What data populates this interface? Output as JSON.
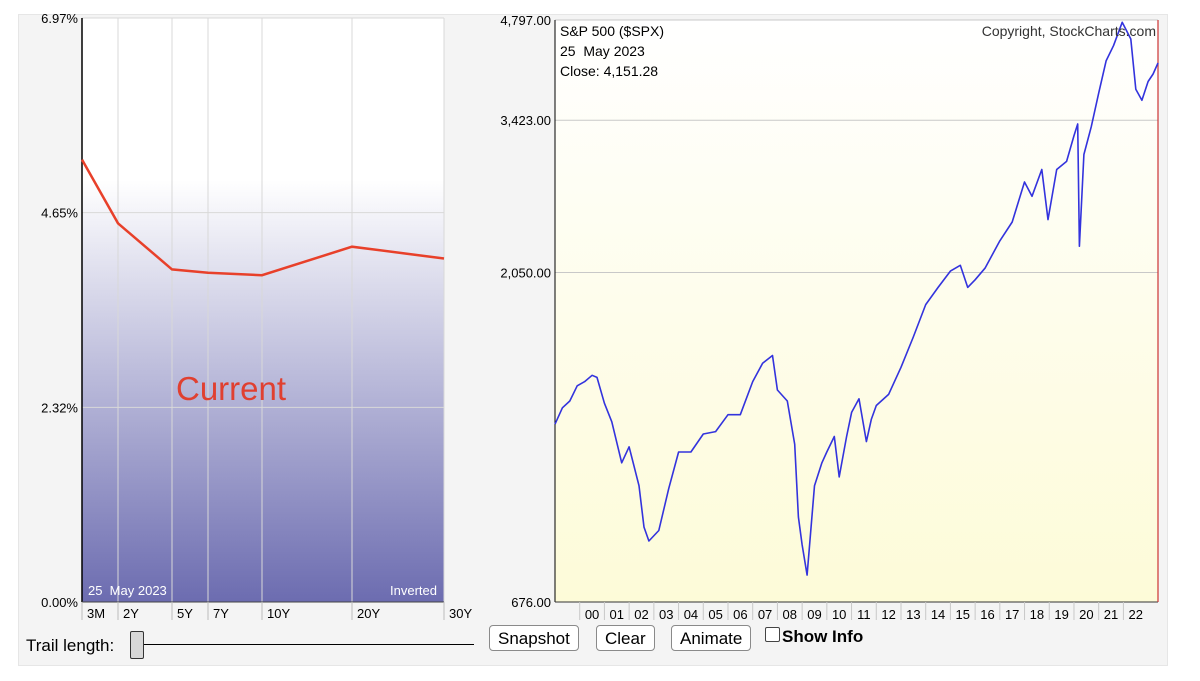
{
  "chart_data": [
    {
      "type": "line",
      "title": "",
      "categories": [
        "3M",
        "2Y",
        "5Y",
        "7Y",
        "10Y",
        "20Y",
        "30Y"
      ],
      "maturity_years": [
        0.25,
        2,
        5,
        7,
        10,
        20,
        30
      ],
      "series": [
        {
          "values": [
            5.28,
            4.52,
            3.97,
            3.93,
            3.9,
            4.24,
            4.1
          ]
        }
      ],
      "ylim": [
        0,
        6.97
      ],
      "yticks": [
        "0.00%",
        "2.32%",
        "4.65%",
        "6.97%"
      ],
      "annotation": "Current",
      "date_label": "25  May 2023",
      "inverted_label": "Inverted",
      "grid": true,
      "colors": {
        "line": "#e8402a",
        "annotation": "#e04030",
        "fill_top": "#ffffff",
        "fill_bottom": "#6c6cb0"
      }
    },
    {
      "type": "line",
      "title": "S&P 500 ($SPX)",
      "date_label": "25  May 2023",
      "close_label": "Close: 4,151.28",
      "copyright": "Copyright, StockCharts.com",
      "scale": "log",
      "ylim": [
        676,
        4797
      ],
      "yticks": [
        "676.00",
        "2,050.00",
        "3,423.00",
        "4,797.00"
      ],
      "ytick_values": [
        676,
        2050,
        3423,
        4797
      ],
      "xlim": [
        1999.0,
        2023.4
      ],
      "xticks": [
        "00",
        "01",
        "02",
        "03",
        "04",
        "05",
        "06",
        "07",
        "08",
        "09",
        "10",
        "11",
        "12",
        "13",
        "14",
        "15",
        "16",
        "17",
        "18",
        "19",
        "20",
        "21",
        "22"
      ],
      "series": [
        {
          "x": [
            1999.0,
            1999.3,
            1999.6,
            1999.9,
            2000.2,
            2000.5,
            2000.7,
            2001.0,
            2001.3,
            2001.7,
            2002.0,
            2002.4,
            2002.6,
            2002.8,
            2003.2,
            2003.6,
            2004.0,
            2004.5,
            2005.0,
            2005.5,
            2006.0,
            2006.5,
            2007.0,
            2007.4,
            2007.8,
            2008.0,
            2008.4,
            2008.7,
            2008.85,
            2009.0,
            2009.2,
            2009.5,
            2009.8,
            2010.0,
            2010.3,
            2010.5,
            2010.8,
            2011.0,
            2011.3,
            2011.6,
            2011.8,
            2012.0,
            2012.5,
            2013.0,
            2013.5,
            2014.0,
            2014.5,
            2015.0,
            2015.4,
            2015.7,
            2016.0,
            2016.4,
            2017.0,
            2017.5,
            2018.0,
            2018.3,
            2018.7,
            2018.95,
            2019.3,
            2019.7,
            2020.0,
            2020.15,
            2020.22,
            2020.4,
            2020.7,
            2021.0,
            2021.3,
            2021.6,
            2021.95,
            2022.3,
            2022.5,
            2022.75,
            2023.0,
            2023.2,
            2023.4
          ],
          "values": [
            1230,
            1300,
            1330,
            1400,
            1420,
            1450,
            1440,
            1320,
            1240,
            1080,
            1140,
            1000,
            870,
            830,
            860,
            990,
            1120,
            1120,
            1190,
            1200,
            1270,
            1270,
            1420,
            1510,
            1550,
            1380,
            1330,
            1150,
            900,
            820,
            740,
            1000,
            1080,
            1120,
            1180,
            1030,
            1180,
            1280,
            1340,
            1160,
            1250,
            1310,
            1360,
            1490,
            1650,
            1840,
            1950,
            2060,
            2100,
            1950,
            2000,
            2080,
            2280,
            2430,
            2780,
            2650,
            2900,
            2450,
            2900,
            2980,
            3250,
            3380,
            2240,
            3050,
            3350,
            3750,
            4180,
            4400,
            4760,
            4500,
            3800,
            3660,
            3900,
            4000,
            4151.28
          ]
        }
      ],
      "grid": true,
      "colors": {
        "line": "#3333dd",
        "fill_top": "#ffffff",
        "fill_bottom": "#fdfbd8",
        "vline": "#cc3333"
      }
    }
  ],
  "controls": {
    "trail_label": "Trail length:",
    "snapshot": "Snapshot",
    "clear": "Clear",
    "animate": "Animate",
    "show_info": "Show Info"
  }
}
